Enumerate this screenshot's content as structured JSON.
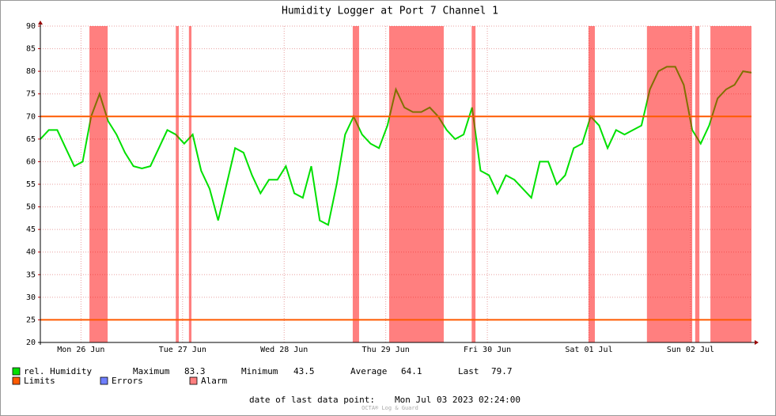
{
  "chart_data": {
    "type": "line",
    "title": "Humidity Logger at Port 7 Channel 1",
    "xlim": [
      2.4,
      170.4
    ],
    "xticks": [
      {
        "value": 12,
        "label": "Mon 26 Jun"
      },
      {
        "value": 36,
        "label": "Tue 27 Jun"
      },
      {
        "value": 60,
        "label": "Wed 28 Jun"
      },
      {
        "value": 84,
        "label": "Thu 29 Jun"
      },
      {
        "value": 108,
        "label": "Fri 30 Jun"
      },
      {
        "value": 132,
        "label": "Sat 01 Jul"
      },
      {
        "value": 156,
        "label": "Sun 02 Jul"
      }
    ],
    "ylim": [
      20,
      90
    ],
    "yticks": [
      20,
      25,
      30,
      35,
      40,
      45,
      50,
      55,
      60,
      65,
      70,
      75,
      80,
      85,
      90
    ],
    "grid": true,
    "series": [
      {
        "name": "rel. Humidity",
        "color": "#00e000",
        "values": [
          65,
          67,
          67,
          63,
          59,
          60,
          70,
          75,
          69,
          66,
          62,
          59,
          58.5,
          59,
          63,
          67,
          66,
          64,
          66,
          58,
          54,
          47,
          55,
          63,
          62,
          57,
          53,
          56,
          56,
          59,
          53,
          52,
          59,
          47,
          46,
          55,
          66,
          70,
          66,
          64,
          63,
          68,
          76,
          72,
          71,
          71,
          72,
          70,
          67,
          65,
          66,
          72,
          58,
          57,
          53,
          57,
          56,
          54,
          52,
          60,
          60,
          55,
          57,
          63,
          64,
          70,
          68,
          63,
          67,
          66,
          67,
          68,
          76,
          80,
          81,
          81,
          77,
          67,
          64,
          68,
          74,
          76,
          77,
          80,
          79.7
        ]
      }
    ],
    "limits": {
      "name": "Limits",
      "color": "#ff5a00",
      "values": [
        70,
        25
      ]
    },
    "errors": {
      "name": "Errors",
      "color": "#6f7fff"
    },
    "alarm": {
      "name": "Alarm",
      "color": "#ff0000",
      "spans": [
        [
          14.0,
          18.3
        ],
        [
          34.4,
          35.1
        ],
        [
          37.5,
          38.1
        ],
        [
          76.2,
          77.7
        ],
        [
          84.8,
          97.7
        ],
        [
          104.3,
          105.2
        ],
        [
          131.9,
          133.4
        ],
        [
          145.7,
          156.4
        ],
        [
          157.1,
          158.1
        ],
        [
          160.7,
          170.4
        ]
      ]
    },
    "stats": [
      {
        "label": "Maximum",
        "value": 83.3
      },
      {
        "label": "Minimum",
        "value": 43.5
      },
      {
        "label": "Average",
        "value": 64.1
      },
      {
        "label": "Last",
        "value": 79.7
      }
    ],
    "footer": {
      "label": "date of last data point:",
      "value": "Mon Jul 03 2023 02:24:00"
    },
    "watermark": "OCTA® Log & Guard"
  }
}
